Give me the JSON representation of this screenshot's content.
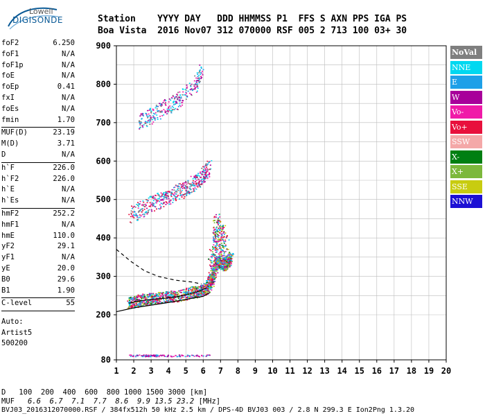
{
  "logo": {
    "line1": "Lowell",
    "line2": "DIGISONDE"
  },
  "header": {
    "row1": "Station    YYYY DAY   DDD HHMMSS P1  FFS S AXN PPS IGA PS",
    "row2": "Boa Vista  2016 Nov07 312 070000 RSF 005 2 713 100 03+ 30"
  },
  "params": {
    "group1": [
      {
        "k": "foF2",
        "v": "6.250"
      },
      {
        "k": "foF1",
        "v": "N/A"
      },
      {
        "k": "foF1p",
        "v": "N/A"
      },
      {
        "k": "foE",
        "v": "N/A"
      },
      {
        "k": "foEp",
        "v": "0.41"
      },
      {
        "k": "fxI",
        "v": "N/A"
      },
      {
        "k": "foEs",
        "v": "N/A"
      },
      {
        "k": "fmin",
        "v": "1.70"
      }
    ],
    "group2": [
      {
        "k": "MUF(D)",
        "v": "23.19"
      },
      {
        "k": "M(D)",
        "v": "3.71"
      },
      {
        "k": "D",
        "v": "N/A"
      }
    ],
    "group3": [
      {
        "k": "h`F",
        "v": "226.0"
      },
      {
        "k": "h`F2",
        "v": "226.0"
      },
      {
        "k": "h`E",
        "v": "N/A"
      },
      {
        "k": "h`Es",
        "v": "N/A"
      }
    ],
    "group4": [
      {
        "k": "hmF2",
        "v": "252.2"
      },
      {
        "k": "hmF1",
        "v": "N/A"
      },
      {
        "k": "hmE",
        "v": "110.0"
      },
      {
        "k": "yF2",
        "v": "29.1"
      },
      {
        "k": "yF1",
        "v": "N/A"
      },
      {
        "k": "yE",
        "v": "20.0"
      },
      {
        "k": "B0",
        "v": "29.6"
      },
      {
        "k": "B1",
        "v": "1.90"
      }
    ],
    "group5": [
      {
        "k": "C-level",
        "v": "55"
      }
    ],
    "auto": [
      "Auto:",
      "Artist5",
      "500200"
    ]
  },
  "legend": [
    {
      "label": "NoVal",
      "color": "#7f7f7f"
    },
    {
      "label": "NNE",
      "color": "#00d8f0"
    },
    {
      "label": "E",
      "color": "#1ea0e8"
    },
    {
      "label": "W",
      "color": "#a8009a"
    },
    {
      "label": "Vo-",
      "color": "#f01aa8"
    },
    {
      "label": "Vo+",
      "color": "#e8103c"
    },
    {
      "label": "SSW",
      "color": "#f4a8a8"
    },
    {
      "label": "X-",
      "color": "#007f12"
    },
    {
      "label": "X+",
      "color": "#7cb83c"
    },
    {
      "label": "SSE",
      "color": "#c8cc10"
    },
    {
      "label": "NNW",
      "color": "#1c10d4"
    }
  ],
  "footer": {
    "d_label": "D",
    "d_values": [
      "100",
      "200",
      "400",
      "600",
      "800",
      "1000",
      "1500",
      "3000"
    ],
    "d_unit": "[km]",
    "muf_label": "MUF",
    "muf_values": [
      "6.6",
      "6.7",
      "7.1",
      "7.7",
      "8.6",
      "9.9",
      "13.5",
      "23.2"
    ],
    "muf_unit": "[MHz]",
    "info": "BVJ03_2016312070000.RSF / 384fx512h 50 kHz 2.5 km / DPS-4D BVJ03 003 / 2.8 N 299.3 E Ion2Png 1.3.20"
  },
  "chart_data": {
    "type": "scatter",
    "x_ticks": [
      "1",
      "2",
      "3",
      "4",
      "5",
      "6",
      "7",
      "8",
      "9",
      "10",
      "11",
      "12",
      "13",
      "14",
      "15",
      "16",
      "17",
      "18",
      "19",
      "20"
    ],
    "y_ticks": [
      "80",
      "200",
      "300",
      "400",
      "500",
      "600",
      "700",
      "800",
      "900"
    ],
    "xlim": [
      1,
      20
    ],
    "ylim": [
      80,
      900
    ],
    "grid": true,
    "traces": [
      {
        "name": "F2 O-trace",
        "x": [
          1.7,
          2.5,
          3.5,
          4.5,
          5.5,
          6.2,
          6.5,
          6.8,
          7.2,
          7.6
        ],
        "y": [
          230,
          240,
          245,
          250,
          260,
          270,
          300,
          340,
          330,
          350
        ]
      },
      {
        "name": "2nd hop",
        "x": [
          1.8,
          3,
          4,
          5,
          5.8,
          6.3
        ],
        "y": [
          460,
          490,
          510,
          530,
          555,
          585
        ]
      },
      {
        "name": "3rd hop",
        "x": [
          2.3,
          3,
          3.8,
          4.6,
          5.5,
          5.9
        ],
        "y": [
          700,
          720,
          740,
          760,
          800,
          840
        ]
      }
    ],
    "profile_dashed": {
      "x": [
        1,
        1.8,
        2.6,
        3.4,
        4.4,
        5.4,
        5.9
      ],
      "y": [
        370,
        340,
        315,
        300,
        290,
        285,
        280
      ]
    },
    "profile_solid": {
      "x": [
        1,
        2,
        3,
        4,
        5,
        6,
        6.4
      ],
      "y": [
        208,
        218,
        225,
        232,
        240,
        248,
        258
      ]
    },
    "trace_points": {
      "x": [
        1.7,
        2.3,
        3,
        3.8,
        4.6,
        5.2,
        5.8,
        6.2
      ],
      "y": [
        230,
        236,
        240,
        243,
        248,
        254,
        262,
        270
      ]
    }
  }
}
